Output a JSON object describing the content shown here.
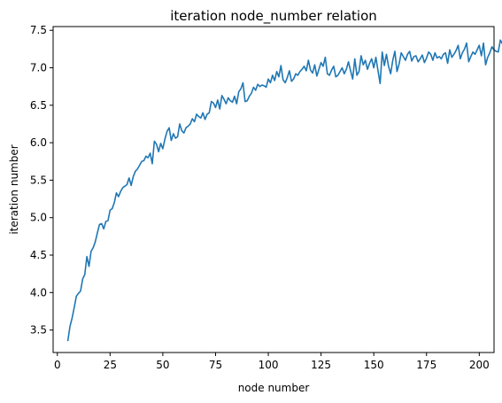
{
  "chart_data": {
    "type": "line",
    "title": "iteration node_number relation",
    "xlabel": "node number",
    "ylabel": "iteration number",
    "xlim": [
      -2,
      207
    ],
    "ylim": [
      3.2,
      7.55
    ],
    "xticks": [
      0,
      25,
      50,
      75,
      100,
      125,
      150,
      175,
      200
    ],
    "yticks": [
      3.5,
      4.0,
      4.5,
      5.0,
      5.5,
      6.0,
      6.5,
      7.0,
      7.5
    ],
    "xtick_labels": [
      "0",
      "25",
      "50",
      "75",
      "100",
      "125",
      "150",
      "175",
      "200"
    ],
    "ytick_labels": [
      "3.5",
      "4.0",
      "4.5",
      "5.0",
      "5.5",
      "6.0",
      "6.5",
      "7.0",
      "7.5"
    ],
    "grid": false,
    "legend": "none",
    "series": [
      {
        "color": "#1f77b4",
        "x_start": 5,
        "x_step": 1,
        "y": [
          3.36,
          3.55,
          3.66,
          3.8,
          3.95,
          3.99,
          4.02,
          4.18,
          4.24,
          4.48,
          4.35,
          4.55,
          4.6,
          4.68,
          4.8,
          4.91,
          4.92,
          4.85,
          4.95,
          4.96,
          5.1,
          5.12,
          5.2,
          5.33,
          5.28,
          5.35,
          5.4,
          5.42,
          5.44,
          5.53,
          5.43,
          5.55,
          5.62,
          5.65,
          5.7,
          5.75,
          5.76,
          5.82,
          5.8,
          5.86,
          5.72,
          6.02,
          5.98,
          5.88,
          5.99,
          5.92,
          6.05,
          6.15,
          6.2,
          6.03,
          6.12,
          6.06,
          6.08,
          6.25,
          6.16,
          6.13,
          6.2,
          6.22,
          6.25,
          6.32,
          6.28,
          6.38,
          6.35,
          6.33,
          6.4,
          6.31,
          6.38,
          6.4,
          6.55,
          6.53,
          6.47,
          6.57,
          6.45,
          6.63,
          6.58,
          6.52,
          6.6,
          6.56,
          6.54,
          6.62,
          6.52,
          6.68,
          6.72,
          6.8,
          6.55,
          6.56,
          6.62,
          6.66,
          6.74,
          6.7,
          6.78,
          6.75,
          6.77,
          6.76,
          6.74,
          6.85,
          6.8,
          6.9,
          6.83,
          6.95,
          6.88,
          7.03,
          6.84,
          6.8,
          6.87,
          6.96,
          6.82,
          6.85,
          6.92,
          6.9,
          6.95,
          6.98,
          7.02,
          6.96,
          7.1,
          6.97,
          6.93,
          7.04,
          6.89,
          6.98,
          7.07,
          7.02,
          7.14,
          6.92,
          6.9,
          6.97,
          7.02,
          6.88,
          6.9,
          6.95,
          7.0,
          6.92,
          6.98,
          7.08,
          6.96,
          6.85,
          7.12,
          6.9,
          6.95,
          7.16,
          7.04,
          7.1,
          6.98,
          7.06,
          7.12,
          7.0,
          7.14,
          6.96,
          6.79,
          7.21,
          7.03,
          7.18,
          7.02,
          6.92,
          7.1,
          7.22,
          6.95,
          7.05,
          7.2,
          7.15,
          7.1,
          7.18,
          7.22,
          7.09,
          7.15,
          7.16,
          7.08,
          7.12,
          7.17,
          7.07,
          7.13,
          7.21,
          7.18,
          7.1,
          7.2,
          7.13,
          7.15,
          7.12,
          7.18,
          7.2,
          7.06,
          7.24,
          7.14,
          7.18,
          7.23,
          7.3,
          7.12,
          7.2,
          7.25,
          7.33,
          7.08,
          7.15,
          7.21,
          7.18,
          7.24,
          7.3,
          7.16,
          7.33,
          7.04,
          7.14,
          7.2,
          7.28,
          7.24,
          7.22,
          7.21,
          7.37,
          7.32,
          7.22,
          7.26
        ]
      }
    ]
  }
}
